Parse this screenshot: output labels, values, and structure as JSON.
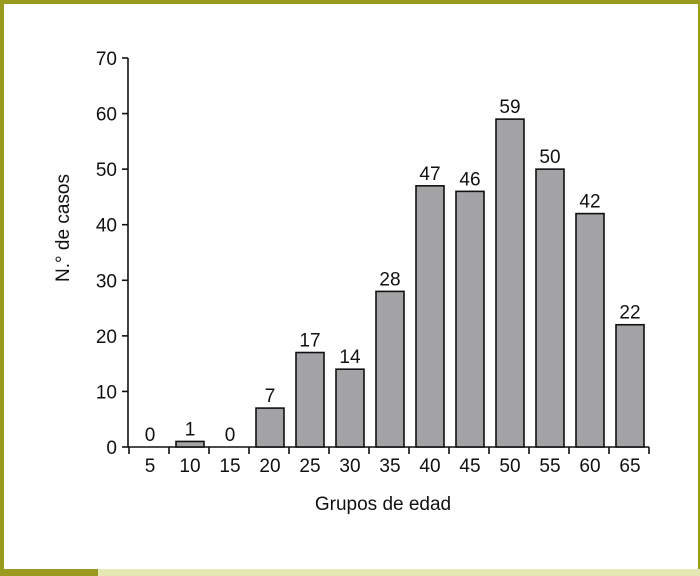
{
  "colors": {
    "frame": "#9a9a1e",
    "frame_light": "#e6e8b4",
    "bar_fill": "#a3a3a6",
    "bar_stroke": "#111111"
  },
  "chart_data": {
    "type": "bar",
    "categories": [
      "5",
      "10",
      "15",
      "20",
      "25",
      "30",
      "35",
      "40",
      "45",
      "50",
      "55",
      "60",
      "65"
    ],
    "values": [
      0,
      1,
      0,
      7,
      17,
      14,
      28,
      47,
      46,
      59,
      50,
      42,
      22
    ],
    "data_labels": [
      "0",
      "1",
      "0",
      "7",
      "17",
      "14",
      "28",
      "47",
      "46",
      "59",
      "50",
      "42",
      "22"
    ],
    "title": "",
    "xlabel": "Grupos de edad",
    "ylabel": "N.° de casos",
    "ylim": [
      0,
      70
    ],
    "yticks": [
      "0",
      "10",
      "20",
      "30",
      "40",
      "50",
      "60",
      "70"
    ],
    "grid": false,
    "legend": "none"
  }
}
